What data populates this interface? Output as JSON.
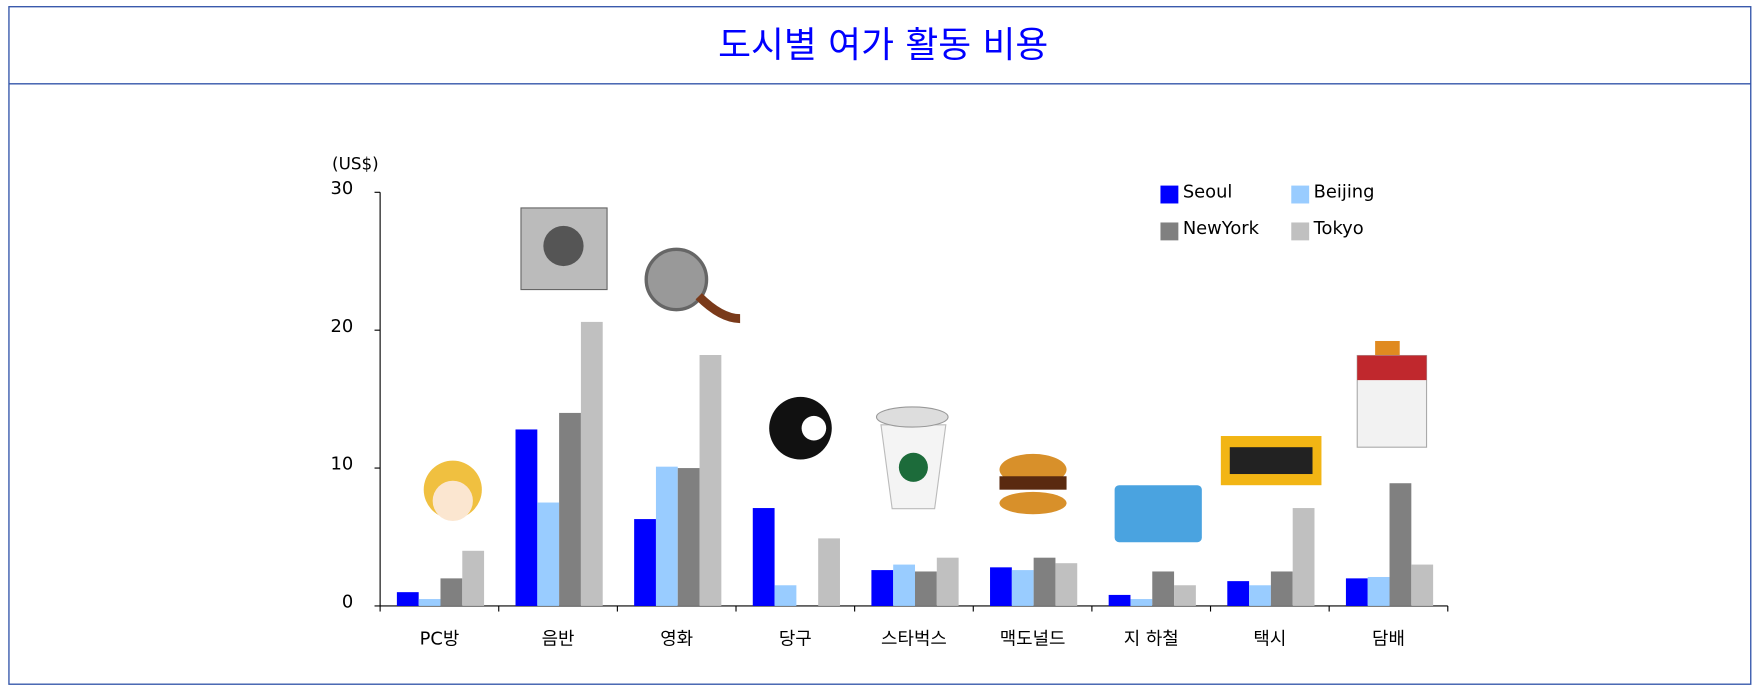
{
  "chart_data": {
    "type": "bar",
    "title": "도시별 여가 활동 비용",
    "y_axis_label": "(US$)",
    "categories": [
      "PC방",
      "음반",
      "영화",
      "당구",
      "스타벅스",
      "맥도널드",
      "지 하철",
      "택시",
      "담배"
    ],
    "series": [
      {
        "name": "Seoul",
        "color": "#0000ff",
        "values": [
          1,
          12.8,
          6.3,
          7.1,
          2.6,
          2.8,
          0.8,
          1.8,
          2.0
        ]
      },
      {
        "name": "Beijing",
        "color": "#99ccff",
        "values": [
          0.5,
          7.5,
          10.1,
          1.5,
          3.0,
          2.6,
          0.5,
          1.5,
          2.1
        ]
      },
      {
        "name": "NewYork",
        "color": "#808080",
        "values": [
          2,
          14,
          10,
          0,
          2.5,
          3.5,
          2.5,
          2.5,
          8.9
        ]
      },
      {
        "name": "Tokyo",
        "color": "#c0c0c0",
        "values": [
          4,
          20.6,
          18.2,
          4.9,
          3.5,
          3.1,
          1.5,
          7.1,
          3.0
        ]
      }
    ],
    "ylim": [
      0,
      30
    ],
    "yticks": [
      0,
      10,
      20,
      30
    ],
    "legend": "upper right"
  }
}
